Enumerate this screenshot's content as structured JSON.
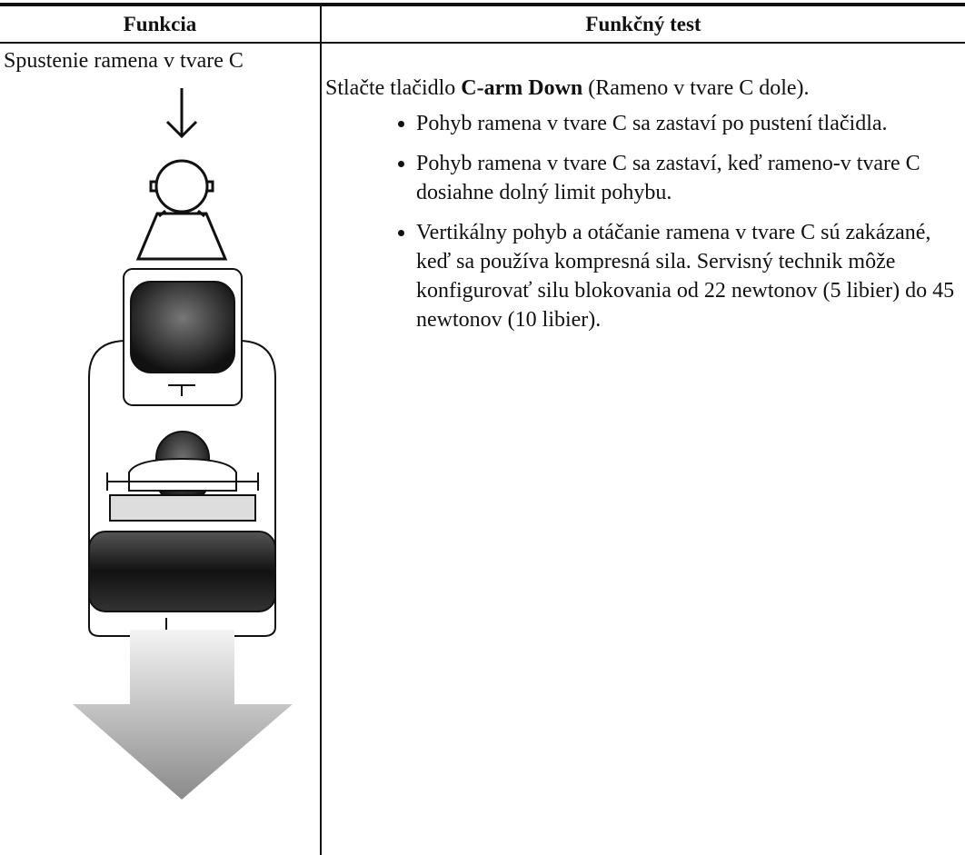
{
  "table": {
    "headers": [
      "Funkcia",
      "Funkčný test"
    ],
    "rows": [
      {
        "function": "Spustenie ramena v tvare C",
        "test": {
          "intro_before": "Stlačte tlačidlo",
          "button": "C-arm Down",
          "intro_after": "(Rameno v tvare C dole).",
          "bullets": [
            "Pohyb ramena v tvare C sa zastaví po pustení tlačidla.",
            "Pohyb ramena v tvare C sa zastaví, keď rameno-v tvare C dosiahne dolný limit pohybu.",
            "Vertikálny pohyb a otáčanie ramena v tvare C sú zakázané, keď sa používa kompresná sila. Servisný technik môže konfigurovať silu blokovania od 22 newtonov (5 libier) do 45 newtonov (10 libier)."
          ]
        }
      }
    ]
  }
}
